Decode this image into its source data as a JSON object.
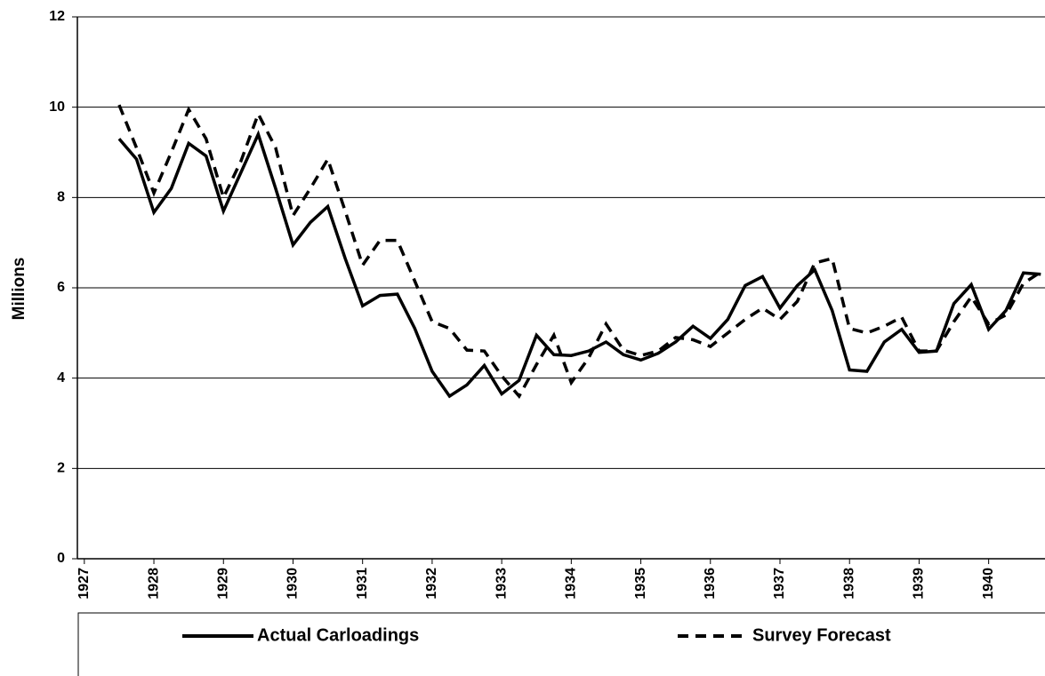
{
  "chart_data": {
    "type": "line",
    "y_label": "Millions",
    "x": [
      1927.5,
      1927.75,
      1928,
      1928.25,
      1928.5,
      1928.75,
      1929,
      1929.25,
      1929.5,
      1929.75,
      1930,
      1930.25,
      1930.5,
      1930.75,
      1931,
      1931.25,
      1931.5,
      1931.75,
      1932,
      1932.25,
      1932.5,
      1932.75,
      1933,
      1933.25,
      1933.5,
      1933.75,
      1934,
      1934.25,
      1934.5,
      1934.75,
      1935,
      1935.25,
      1935.5,
      1935.75,
      1936,
      1936.25,
      1936.5,
      1936.75,
      1937,
      1937.25,
      1937.5,
      1937.75,
      1938,
      1938.25,
      1938.5,
      1938.75,
      1939,
      1939.25,
      1939.5,
      1939.75,
      1940,
      1940.25,
      1940.5,
      1940.75
    ],
    "series": [
      {
        "name": "Actual Carloadings",
        "color": "#000000",
        "style": "solid",
        "values": [
          9.3,
          8.85,
          7.67,
          8.2,
          9.2,
          8.92,
          7.7,
          8.55,
          9.4,
          8.2,
          6.95,
          7.45,
          7.8,
          6.65,
          5.6,
          5.83,
          5.86,
          5.1,
          4.15,
          3.6,
          3.85,
          4.28,
          3.65,
          3.95,
          4.95,
          4.52,
          4.5,
          4.6,
          4.8,
          4.52,
          4.4,
          4.55,
          4.8,
          5.15,
          4.88,
          5.3,
          6.05,
          6.25,
          5.55,
          6.05,
          6.4,
          5.5,
          4.18,
          4.15,
          4.8,
          5.08,
          4.57,
          4.6,
          5.65,
          6.07,
          5.08,
          5.5,
          6.33,
          6.3
        ]
      },
      {
        "name": "Survey Forecast",
        "color": "#000000",
        "style": "dashed",
        "values": [
          10.05,
          9.1,
          8.1,
          9.0,
          9.95,
          9.3,
          8.0,
          8.8,
          9.85,
          9.1,
          7.6,
          8.2,
          8.85,
          7.7,
          6.5,
          7.05,
          7.05,
          6.15,
          5.25,
          5.1,
          4.62,
          4.6,
          4.05,
          3.6,
          4.3,
          4.95,
          3.9,
          4.45,
          5.2,
          4.62,
          4.5,
          4.6,
          4.9,
          4.85,
          4.7,
          5.0,
          5.3,
          5.55,
          5.3,
          5.7,
          6.55,
          6.65,
          5.1,
          5.0,
          5.15,
          5.35,
          4.6,
          4.6,
          5.25,
          5.8,
          5.2,
          5.4,
          6.1,
          6.35
        ]
      }
    ],
    "xlim": [
      1926.9,
      1940.81
    ],
    "xticks": [
      1927,
      1928,
      1929,
      1930,
      1931,
      1932,
      1933,
      1934,
      1935,
      1936,
      1937,
      1938,
      1939,
      1940
    ],
    "ylim": [
      0,
      12
    ],
    "yticks": [
      0,
      2,
      4,
      6,
      8,
      10,
      12
    ],
    "grid": true,
    "legend": "bottom"
  }
}
